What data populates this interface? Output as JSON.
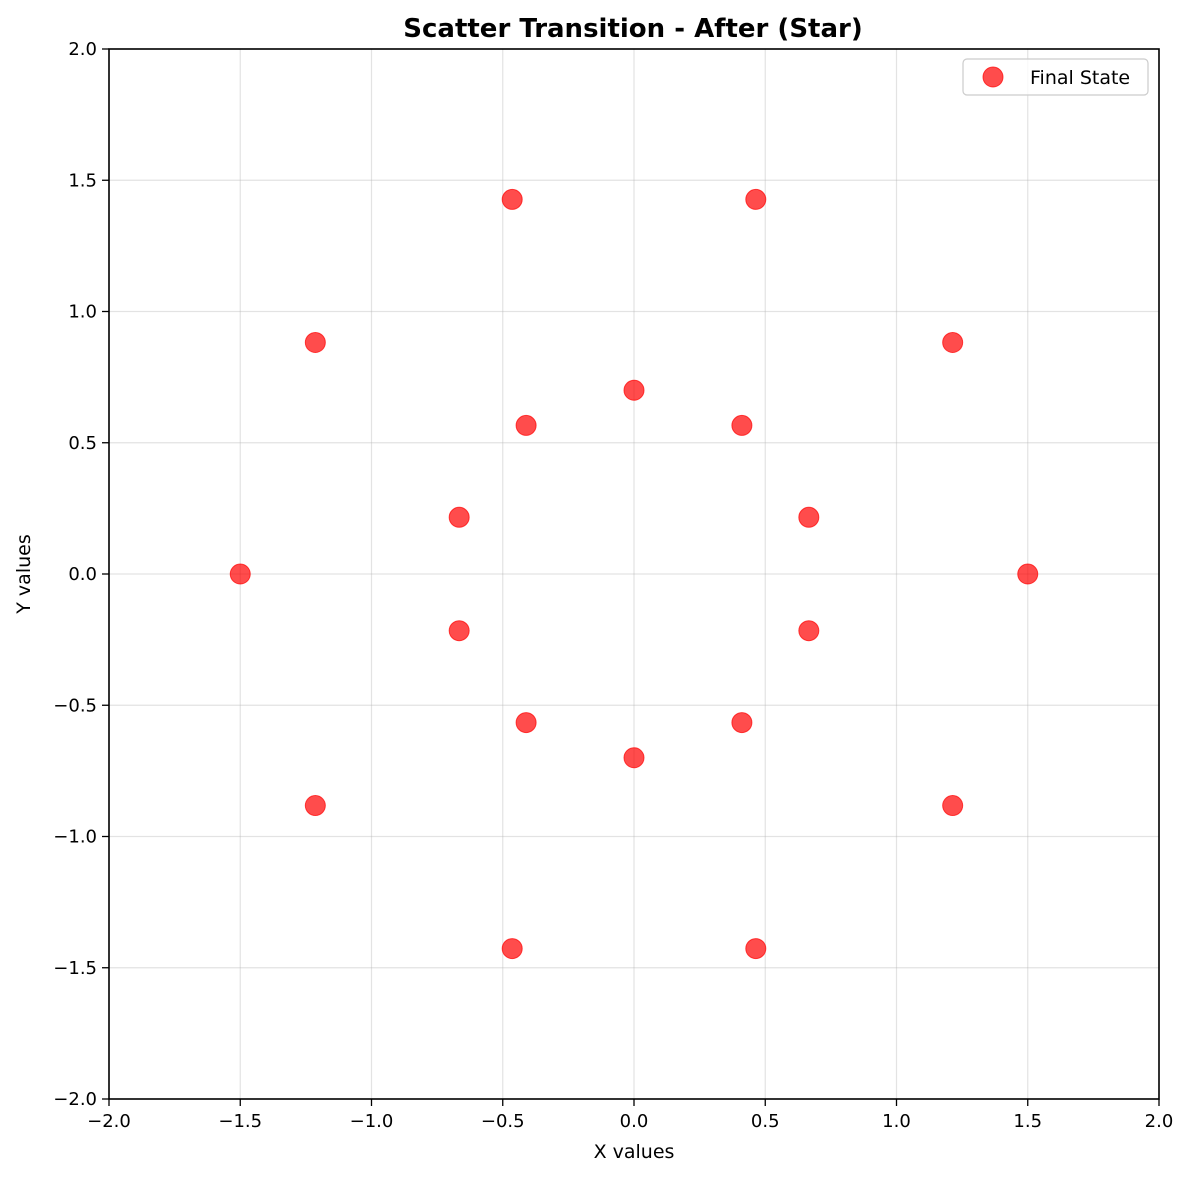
{
  "chart_data": {
    "type": "scatter",
    "title": "Scatter Transition - After (Star)",
    "xlabel": "X values",
    "ylabel": "Y values",
    "xlim": [
      -2.0,
      2.0
    ],
    "ylim": [
      -2.0,
      2.0
    ],
    "x_ticks": [
      -2.0,
      -1.5,
      -1.0,
      -0.5,
      0.0,
      0.5,
      1.0,
      1.5,
      2.0
    ],
    "y_ticks": [
      -2.0,
      -1.5,
      -1.0,
      -0.5,
      0.0,
      0.5,
      1.0,
      1.5,
      2.0
    ],
    "x_tick_labels": [
      "−2.0",
      "−1.5",
      "−1.0",
      "−0.5",
      "0.0",
      "0.5",
      "1.0",
      "1.5",
      "2.0"
    ],
    "y_tick_labels": [
      "−2.0",
      "−1.5",
      "−1.0",
      "−0.5",
      "0.0",
      "0.5",
      "1.0",
      "1.5",
      "2.0"
    ],
    "grid": true,
    "legend_position": "top-right",
    "series": [
      {
        "name": "Final State",
        "color": "#ff0000",
        "points": [
          {
            "x": 1.5,
            "y": 0.0
          },
          {
            "x": 0.666,
            "y": 0.216
          },
          {
            "x": 1.214,
            "y": 0.882
          },
          {
            "x": 0.411,
            "y": 0.566
          },
          {
            "x": 0.464,
            "y": 1.427
          },
          {
            "x": 0.0,
            "y": 0.7
          },
          {
            "x": -0.464,
            "y": 1.427
          },
          {
            "x": -0.411,
            "y": 0.566
          },
          {
            "x": -1.214,
            "y": 0.882
          },
          {
            "x": -0.666,
            "y": 0.216
          },
          {
            "x": -1.5,
            "y": 0.0
          },
          {
            "x": -0.666,
            "y": -0.216
          },
          {
            "x": -1.214,
            "y": -0.882
          },
          {
            "x": -0.411,
            "y": -0.566
          },
          {
            "x": -0.464,
            "y": -1.427
          },
          {
            "x": 0.0,
            "y": -0.7
          },
          {
            "x": 0.464,
            "y": -1.427
          },
          {
            "x": 0.411,
            "y": -0.566
          },
          {
            "x": 1.214,
            "y": -0.882
          },
          {
            "x": 0.666,
            "y": -0.216
          }
        ]
      }
    ]
  }
}
